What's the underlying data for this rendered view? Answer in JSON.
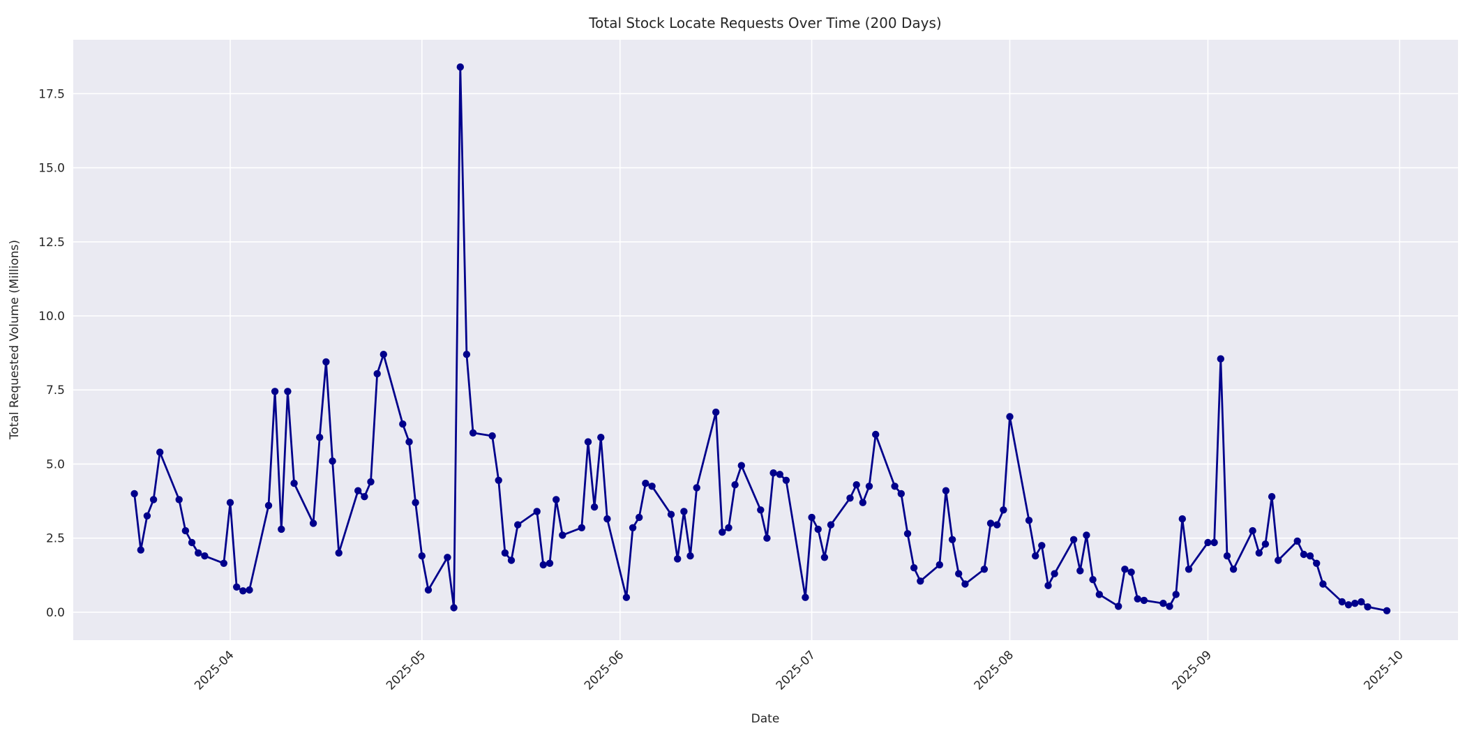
{
  "figure": {
    "title": "Total Stock Locate Requests Over Time (200 Days)",
    "xlabel": "Date",
    "ylabel": "Total Requested Volume (Millions)"
  },
  "colors": {
    "line": "#00008b",
    "marker": "#00008b",
    "plot_background": "#eaeaf2",
    "grid": "#ffffff",
    "text": "#262626",
    "figure_background": "#ffffff"
  },
  "chart_data": {
    "type": "line",
    "title": "Total Stock Locate Requests Over Time (200 Days)",
    "xlabel": "Date",
    "ylabel": "Total Requested Volume (Millions)",
    "legend_position": "none",
    "grid": true,
    "marker": "circle",
    "line_color": "#00008b",
    "start_date": "2025-03-17",
    "end_date": "2025-09-29",
    "frequency": "business_days",
    "ylim": [
      -0.92,
      19.32
    ],
    "xlim_day_offsets": [
      -10.6,
      207.1
    ],
    "y_ticks": [
      0.0,
      2.5,
      5.0,
      7.5,
      10.0,
      12.5,
      15.0,
      17.5
    ],
    "y_tick_labels": [
      "0.0",
      "2.5",
      "5.0",
      "7.5",
      "10.0",
      "12.5",
      "15.0",
      "17.5"
    ],
    "x_ticks": [
      {
        "label": "2025-04",
        "day_offset": 15
      },
      {
        "label": "2025-05",
        "day_offset": 45
      },
      {
        "label": "2025-06",
        "day_offset": 76
      },
      {
        "label": "2025-07",
        "day_offset": 106
      },
      {
        "label": "2025-08",
        "day_offset": 137
      },
      {
        "label": "2025-09",
        "day_offset": 168
      },
      {
        "label": "2025-10",
        "day_offset": 198
      }
    ],
    "values": [
      4.0,
      2.1,
      3.25,
      3.8,
      5.4,
      3.8,
      2.75,
      2.35,
      2.0,
      1.9,
      1.65,
      3.7,
      0.85,
      0.72,
      0.75,
      3.6,
      7.45,
      2.8,
      7.45,
      4.35,
      3.0,
      5.9,
      8.45,
      5.1,
      2.0,
      4.1,
      3.9,
      4.4,
      8.05,
      8.7,
      6.35,
      5.75,
      3.7,
      1.9,
      0.75,
      1.85,
      0.15,
      18.4,
      8.7,
      6.05,
      5.95,
      4.45,
      2.0,
      1.75,
      2.95,
      3.4,
      1.6,
      1.65,
      3.8,
      2.6,
      2.85,
      5.75,
      3.55,
      5.9,
      3.15,
      0.5,
      2.85,
      3.2,
      4.35,
      4.25,
      3.3,
      1.8,
      3.4,
      1.9,
      4.2,
      6.75,
      2.7,
      2.85,
      4.3,
      4.95,
      3.45,
      2.5,
      4.7,
      4.65,
      4.45,
      0.5,
      3.2,
      2.8,
      1.85,
      2.95,
      3.85,
      4.3,
      3.7,
      4.25,
      6.0,
      4.25,
      4.0,
      2.65,
      1.5,
      1.05,
      1.6,
      4.1,
      2.45,
      1.3,
      0.95,
      1.45,
      3.0,
      2.95,
      3.45,
      6.6,
      3.1,
      1.9,
      2.25,
      0.9,
      1.3,
      2.45,
      1.4,
      2.6,
      1.1,
      0.6,
      0.2,
      1.45,
      1.35,
      0.45,
      0.4,
      0.3,
      0.2,
      0.6,
      3.15,
      1.45,
      2.35,
      2.35,
      8.55,
      1.9,
      1.45,
      2.75,
      2.0,
      2.3,
      3.9,
      1.75,
      2.4,
      1.95,
      1.9,
      1.65,
      0.95,
      0.35,
      0.25,
      0.3,
      0.35,
      0.18,
      0.05
    ]
  }
}
